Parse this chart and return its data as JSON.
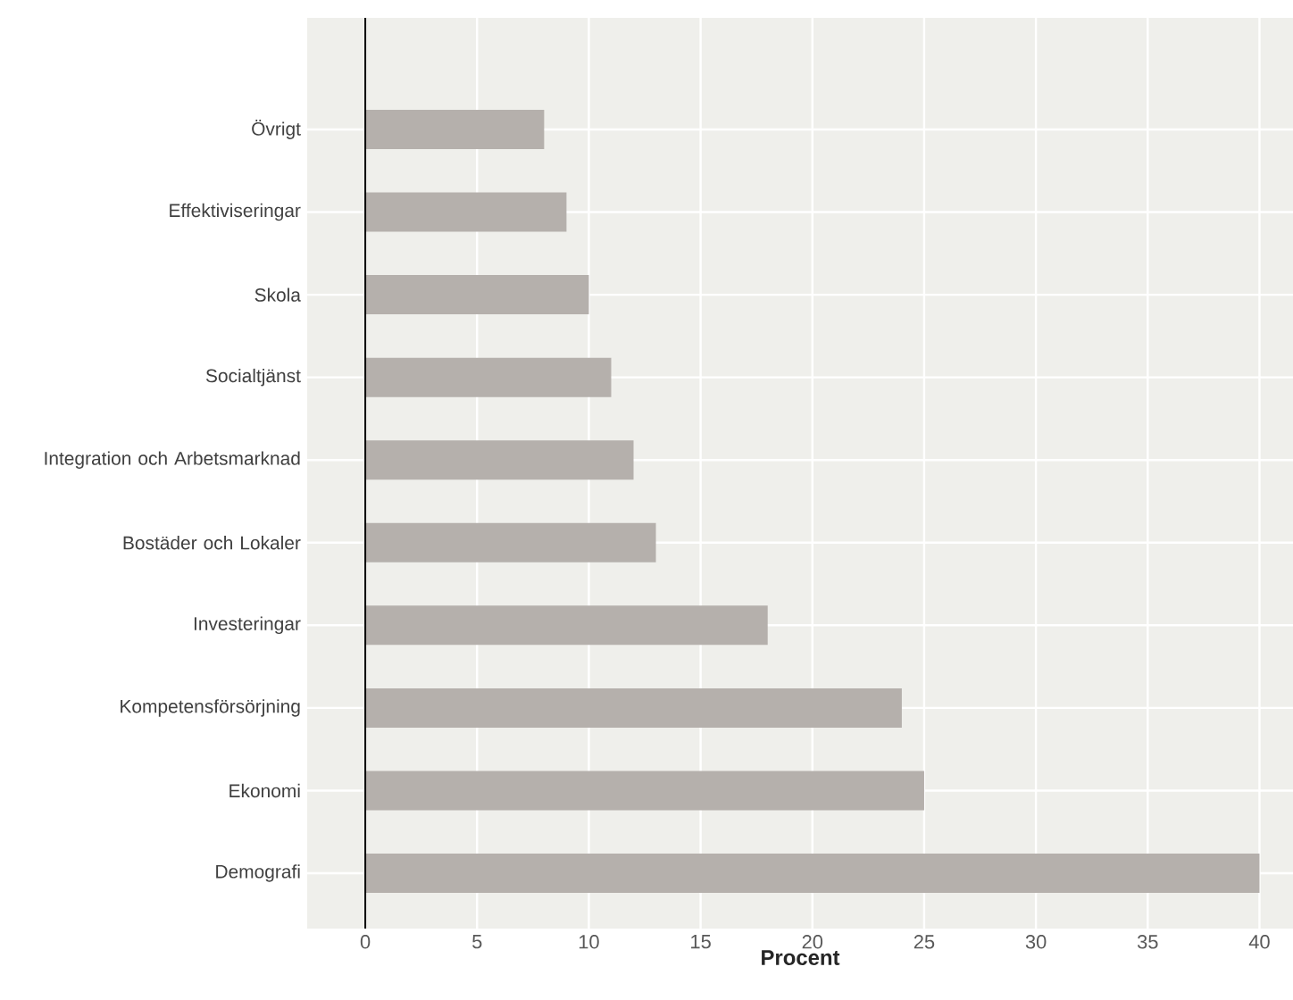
{
  "chart_data": {
    "type": "bar",
    "orientation": "horizontal",
    "xlabel": "Procent",
    "categories": [
      "Övrigt",
      "Effektiviseringar",
      "Skola",
      "Socialtjänst",
      "Integration och Arbetsmarknad",
      "Bostäder och Lokaler",
      "Investeringar",
      "Kompetensförsörjning",
      "Ekonomi",
      "Demografi"
    ],
    "values": [
      8,
      9,
      10,
      11,
      12,
      13,
      18,
      24,
      25,
      40
    ],
    "color": "#b5b0ac",
    "xlim": [
      -2.6,
      41.5
    ],
    "xticks": [
      0,
      5,
      10,
      15,
      20,
      25,
      30,
      35,
      40
    ],
    "grid": true,
    "ref_lines": [
      {
        "axis": "x",
        "value": 0,
        "color": "#000000"
      }
    ]
  }
}
